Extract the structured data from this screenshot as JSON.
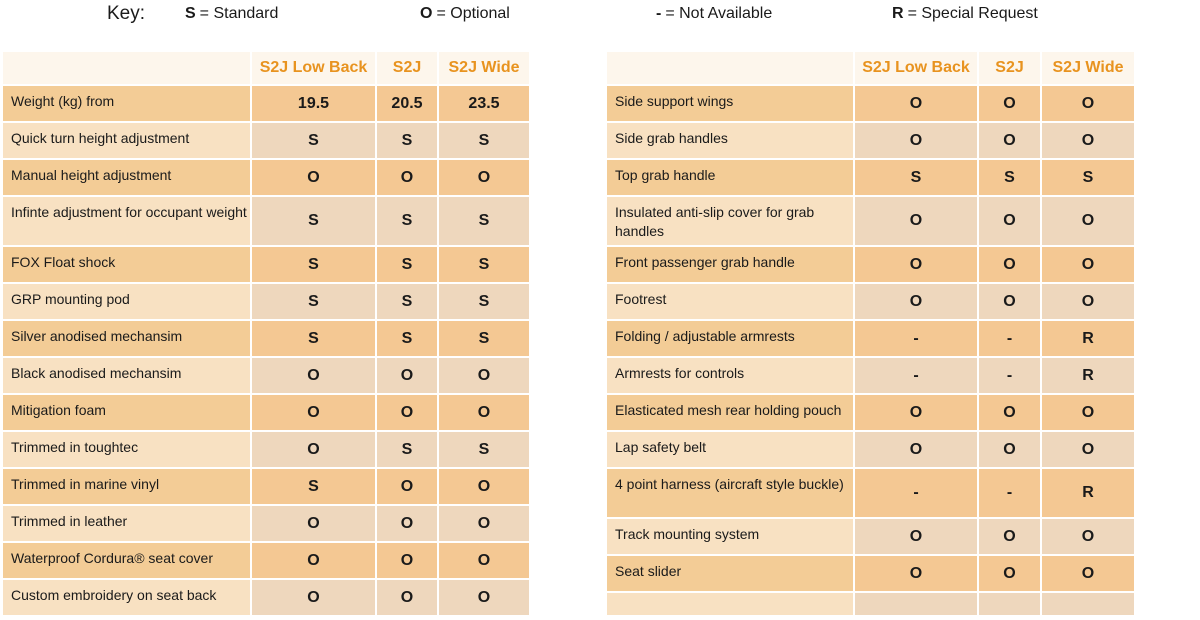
{
  "key": {
    "title": "Key:",
    "items": [
      {
        "symbol": "S",
        "text": "= Standard"
      },
      {
        "symbol": "O",
        "text": "= Optional"
      },
      {
        "symbol": "-",
        "text": "= Not Available"
      },
      {
        "symbol": "R",
        "text": "= Special Request"
      }
    ]
  },
  "colors": {
    "header_text": "#e8931f",
    "row_dark": "#f3cc96",
    "row_light": "#f8e1c2"
  },
  "left_table": {
    "columns": [
      "",
      "S2J Low Back",
      "S2J",
      "S2J Wide"
    ],
    "rows": [
      {
        "feature": "Weight (kg) from",
        "values": [
          "19.5",
          "20.5",
          "23.5"
        ]
      },
      {
        "feature": "Quick turn height adjustment",
        "values": [
          "S",
          "S",
          "S"
        ]
      },
      {
        "feature": "Manual height adjustment",
        "values": [
          "O",
          "O",
          "O"
        ]
      },
      {
        "feature": "Infinte adjustment for occupant weight",
        "values": [
          "S",
          "S",
          "S"
        ]
      },
      {
        "feature": "FOX Float shock",
        "values": [
          "S",
          "S",
          "S"
        ]
      },
      {
        "feature": "GRP mounting pod",
        "values": [
          "S",
          "S",
          "S"
        ]
      },
      {
        "feature": "Silver anodised mechansim",
        "values": [
          "S",
          "S",
          "S"
        ]
      },
      {
        "feature": "Black anodised mechansim",
        "values": [
          "O",
          "O",
          "O"
        ]
      },
      {
        "feature": "Mitigation foam",
        "values": [
          "O",
          "O",
          "O"
        ]
      },
      {
        "feature": "Trimmed in toughtec",
        "values": [
          "O",
          "S",
          "S"
        ]
      },
      {
        "feature": "Trimmed in marine vinyl",
        "values": [
          "S",
          "O",
          "O"
        ]
      },
      {
        "feature": "Trimmed in leather",
        "values": [
          "O",
          "O",
          "O"
        ]
      },
      {
        "feature": "Waterproof Cordura® seat cover",
        "values": [
          "O",
          "O",
          "O"
        ]
      },
      {
        "feature": "Custom embroidery on seat back",
        "values": [
          "O",
          "O",
          "O"
        ]
      }
    ]
  },
  "right_table": {
    "columns": [
      "",
      "S2J Low Back",
      "S2J",
      "S2J Wide"
    ],
    "rows": [
      {
        "feature": "Side support wings",
        "values": [
          "O",
          "O",
          "O"
        ]
      },
      {
        "feature": "Side grab handles",
        "values": [
          "O",
          "O",
          "O"
        ]
      },
      {
        "feature": "Top grab handle",
        "values": [
          "S",
          "S",
          "S"
        ]
      },
      {
        "feature": "Insulated anti-slip cover for grab handles",
        "values": [
          "O",
          "O",
          "O"
        ]
      },
      {
        "feature": "Front passenger grab handle",
        "values": [
          "O",
          "O",
          "O"
        ]
      },
      {
        "feature": "Footrest",
        "values": [
          "O",
          "O",
          "O"
        ]
      },
      {
        "feature": "Folding / adjustable armrests",
        "values": [
          "-",
          "-",
          "R"
        ]
      },
      {
        "feature": "Armrests for controls",
        "values": [
          "-",
          "-",
          "R"
        ]
      },
      {
        "feature": "Elasticated mesh rear holding pouch",
        "values": [
          "O",
          "O",
          "O"
        ]
      },
      {
        "feature": "Lap safety belt",
        "values": [
          "O",
          "O",
          "O"
        ]
      },
      {
        "feature": "4 point harness (aircraft style buckle)",
        "values": [
          "-",
          "-",
          "R"
        ]
      },
      {
        "feature": "Track mounting system",
        "values": [
          "O",
          "O",
          "O"
        ]
      },
      {
        "feature": "Seat slider",
        "values": [
          "O",
          "O",
          "O"
        ]
      }
    ]
  }
}
